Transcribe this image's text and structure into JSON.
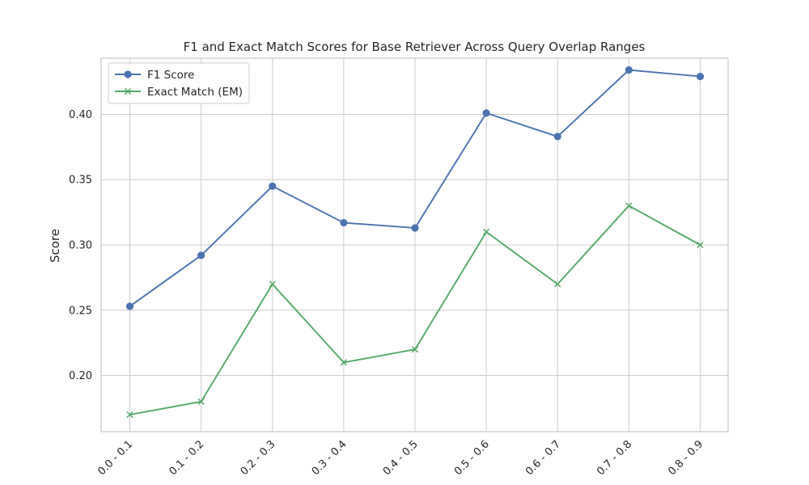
{
  "chart_data": {
    "type": "line",
    "title": "F1 and Exact Match Scores for Base Retriever Across Query Overlap Ranges",
    "xlabel": "",
    "ylabel": "Score",
    "categories": [
      "0.0 - 0.1",
      "0.1 - 0.2",
      "0.2 - 0.3",
      "0.3 - 0.4",
      "0.4 - 0.5",
      "0.5 - 0.6",
      "0.6 - 0.7",
      "0.7 - 0.8",
      "0.8 - 0.9"
    ],
    "ylim": [
      0.157,
      0.443
    ],
    "yticks": [
      0.2,
      0.25,
      0.3,
      0.35,
      0.4
    ],
    "ytick_labels": [
      "0.20",
      "0.25",
      "0.30",
      "0.35",
      "0.40"
    ],
    "grid": true,
    "legend_position": "top-left",
    "series": [
      {
        "name": "F1 Score",
        "color": "#4c72b0",
        "marker": "circle",
        "values": [
          0.253,
          0.292,
          0.345,
          0.317,
          0.313,
          0.401,
          0.383,
          0.434,
          0.429
        ]
      },
      {
        "name": "Exact Match (EM)",
        "color": "#55a868",
        "marker": "x",
        "values": [
          0.17,
          0.18,
          0.27,
          0.21,
          0.22,
          0.31,
          0.27,
          0.33,
          0.3
        ]
      }
    ]
  }
}
